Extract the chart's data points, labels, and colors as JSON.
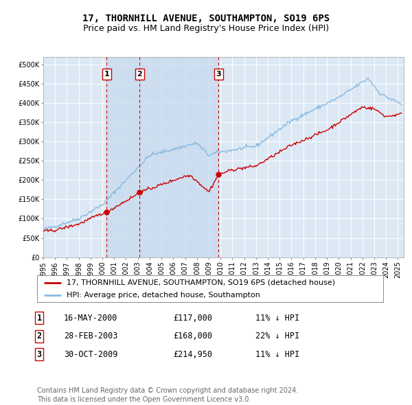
{
  "title": "17, THORNHILL AVENUE, SOUTHAMPTON, SO19 6PS",
  "subtitle": "Price paid vs. HM Land Registry's House Price Index (HPI)",
  "ylim": [
    0,
    520000
  ],
  "yticks": [
    0,
    50000,
    100000,
    150000,
    200000,
    250000,
    300000,
    350000,
    400000,
    450000,
    500000
  ],
  "xlim_start": 1995.0,
  "xlim_end": 2025.5,
  "background_color": "#ffffff",
  "plot_bg_color": "#dce9f5",
  "grid_color": "#ffffff",
  "hpi_line_color": "#88b8e0",
  "price_line_color": "#cc0000",
  "sale_marker_color": "#cc0000",
  "sale_vline_color": "#cc0000",
  "shade_color": "#c5d8ed",
  "transactions": [
    {
      "label": "1",
      "date": "16-MAY-2000",
      "year": 2000.37,
      "price": 117000,
      "hpi_pct": "11% ↓ HPI"
    },
    {
      "label": "2",
      "date": "28-FEB-2003",
      "year": 2003.16,
      "price": 168000,
      "hpi_pct": "22% ↓ HPI"
    },
    {
      "label": "3",
      "date": "30-OCT-2009",
      "year": 2009.83,
      "price": 214950,
      "hpi_pct": "11% ↓ HPI"
    }
  ],
  "legend_entries": [
    "17, THORNHILL AVENUE, SOUTHAMPTON, SO19 6PS (detached house)",
    "HPI: Average price, detached house, Southampton"
  ],
  "footer_text": "Contains HM Land Registry data © Crown copyright and database right 2024.\nThis data is licensed under the Open Government Licence v3.0.",
  "title_fontsize": 10,
  "subtitle_fontsize": 9,
  "tick_fontsize": 7,
  "legend_fontsize": 8,
  "table_fontsize": 8.5,
  "footer_fontsize": 7,
  "annotation_fontsize": 8
}
